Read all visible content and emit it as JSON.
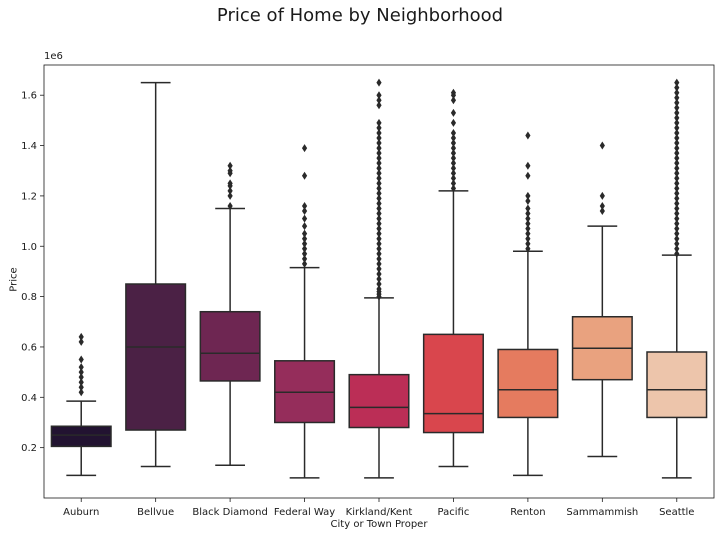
{
  "chart_data": {
    "type": "box",
    "title": "Price of Home by Neighborhood",
    "xlabel": "City or Town Proper",
    "ylabel": "Price",
    "y_offset_label": "1e6",
    "ylim": [
      0,
      1.72
    ],
    "yticks": [
      0.2,
      0.4,
      0.6,
      0.8,
      1.0,
      1.2,
      1.4,
      1.6
    ],
    "ytick_labels": [
      "0.2",
      "0.4",
      "0.6",
      "0.8",
      "1.0",
      "1.2",
      "1.4",
      "1.6"
    ],
    "grid": false,
    "categories": [
      "Auburn",
      "Bellvue",
      "Black Diamond",
      "Federal Way",
      "Kirkland/Kent",
      "Pacific",
      "Renton",
      "Sammammish",
      "Seattle"
    ],
    "boxes": [
      {
        "name": "Auburn",
        "whisker_low": 0.09,
        "q1": 0.205,
        "median": 0.25,
        "q3": 0.285,
        "whisker_high": 0.385,
        "outliers": [
          0.42,
          0.44,
          0.46,
          0.48,
          0.5,
          0.52,
          0.55,
          0.62,
          0.64
        ]
      },
      {
        "name": "Bellvue",
        "whisker_low": 0.125,
        "q1": 0.27,
        "median": 0.6,
        "q3": 0.85,
        "whisker_high": 1.65,
        "outliers": []
      },
      {
        "name": "Black Diamond",
        "whisker_low": 0.13,
        "q1": 0.465,
        "median": 0.575,
        "q3": 0.74,
        "whisker_high": 1.15,
        "outliers": [
          1.16,
          1.2,
          1.22,
          1.24,
          1.25,
          1.29,
          1.3,
          1.32
        ]
      },
      {
        "name": "Federal Way",
        "whisker_low": 0.08,
        "q1": 0.3,
        "median": 0.42,
        "q3": 0.545,
        "whisker_high": 0.915,
        "outliers": [
          0.93,
          0.95,
          0.97,
          0.99,
          1.01,
          1.03,
          1.05,
          1.08,
          1.11,
          1.14,
          1.16,
          1.28,
          1.39
        ]
      },
      {
        "name": "Kirkland/Kent",
        "whisker_low": 0.08,
        "q1": 0.28,
        "median": 0.36,
        "q3": 0.49,
        "whisker_high": 0.795,
        "outliers": [
          0.8,
          0.81,
          0.82,
          0.83,
          0.85,
          0.87,
          0.89,
          0.91,
          0.93,
          0.95,
          0.97,
          0.99,
          1.01,
          1.03,
          1.05,
          1.07,
          1.09,
          1.11,
          1.13,
          1.15,
          1.17,
          1.19,
          1.21,
          1.23,
          1.25,
          1.27,
          1.29,
          1.31,
          1.33,
          1.35,
          1.37,
          1.39,
          1.41,
          1.43,
          1.45,
          1.47,
          1.49,
          1.56,
          1.58,
          1.6,
          1.65
        ]
      },
      {
        "name": "Pacific",
        "whisker_low": 0.125,
        "q1": 0.26,
        "median": 0.335,
        "q3": 0.65,
        "whisker_high": 1.22,
        "outliers": [
          1.23,
          1.25,
          1.27,
          1.29,
          1.31,
          1.33,
          1.35,
          1.37,
          1.39,
          1.41,
          1.43,
          1.45,
          1.49,
          1.53,
          1.58,
          1.6,
          1.61
        ]
      },
      {
        "name": "Renton",
        "whisker_low": 0.09,
        "q1": 0.32,
        "median": 0.43,
        "q3": 0.59,
        "whisker_high": 0.98,
        "outliers": [
          0.99,
          1.01,
          1.03,
          1.05,
          1.07,
          1.09,
          1.11,
          1.13,
          1.15,
          1.18,
          1.2,
          1.28,
          1.32,
          1.44
        ]
      },
      {
        "name": "Sammammish",
        "whisker_low": 0.165,
        "q1": 0.47,
        "median": 0.595,
        "q3": 0.72,
        "whisker_high": 1.08,
        "outliers": [
          1.14,
          1.16,
          1.2,
          1.4
        ]
      },
      {
        "name": "Seattle",
        "whisker_low": 0.08,
        "q1": 0.32,
        "median": 0.43,
        "q3": 0.58,
        "whisker_high": 0.965,
        "outliers": [
          0.97,
          0.99,
          1.01,
          1.03,
          1.05,
          1.07,
          1.09,
          1.11,
          1.13,
          1.15,
          1.17,
          1.19,
          1.21,
          1.23,
          1.25,
          1.27,
          1.29,
          1.31,
          1.33,
          1.35,
          1.37,
          1.39,
          1.41,
          1.43,
          1.45,
          1.47,
          1.49,
          1.51,
          1.53,
          1.55,
          1.57,
          1.59,
          1.61,
          1.63,
          1.65
        ]
      }
    ],
    "colors": [
      "#221331",
      "#4b2145",
      "#6e2652",
      "#952d5b",
      "#bb2e56",
      "#d9464d",
      "#e57b5f",
      "#e9a27f",
      "#edc5ab"
    ]
  }
}
